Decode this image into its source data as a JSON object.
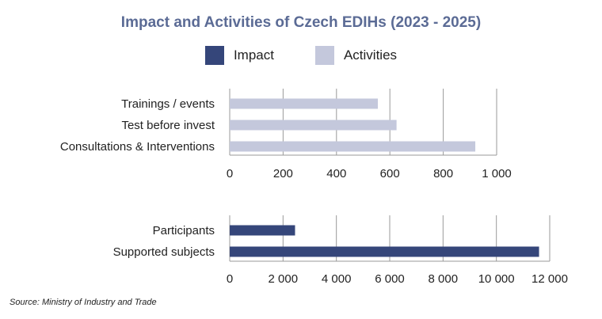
{
  "title": "Impact and Activities of Czech EDIHs (2023 - 2025)",
  "legend": [
    {
      "label": "Impact",
      "color": "#35467a"
    },
    {
      "label": "Activities",
      "color": "#c4c8dc"
    }
  ],
  "source": "Source: Ministry of Industry and Trade",
  "chart_data": [
    {
      "type": "bar",
      "orientation": "horizontal",
      "series_name": "Activities",
      "color": "#c4c8dc",
      "categories": [
        "Trainings / events",
        "Test before invest",
        "Consultations & Interventions"
      ],
      "values": [
        555,
        625,
        920
      ],
      "xlim": [
        0,
        1000
      ],
      "ticks": [
        0,
        200,
        400,
        600,
        800,
        1000
      ],
      "tick_labels": [
        "0",
        "200",
        "400",
        "600",
        "800",
        "1 000"
      ],
      "grid": true
    },
    {
      "type": "bar",
      "orientation": "horizontal",
      "series_name": "Impact",
      "color": "#35467a",
      "categories": [
        "Participants",
        "Supported subjects"
      ],
      "values": [
        2450,
        11600
      ],
      "xlim": [
        0,
        12000
      ],
      "ticks": [
        0,
        2000,
        4000,
        6000,
        8000,
        10000,
        12000
      ],
      "tick_labels": [
        "0",
        "2 000",
        "4 000",
        "6 000",
        "8 000",
        "10 000",
        "12 000"
      ],
      "grid": true
    }
  ]
}
